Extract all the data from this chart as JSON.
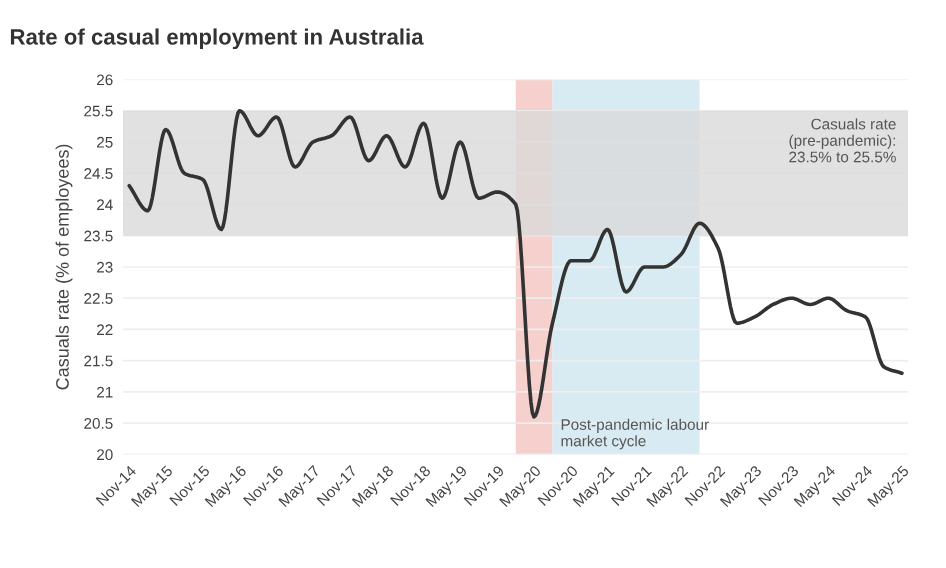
{
  "chart_data": {
    "type": "line",
    "title": "Rate of casual employment in Australia",
    "ylabel": "Casuals rate (% of employees)",
    "x": [
      "2014-11",
      "2015-02",
      "2015-05",
      "2015-08",
      "2015-11",
      "2016-02",
      "2016-05",
      "2016-08",
      "2016-11",
      "2017-02",
      "2017-05",
      "2017-08",
      "2017-11",
      "2018-02",
      "2018-05",
      "2018-08",
      "2018-11",
      "2019-02",
      "2019-05",
      "2019-08",
      "2019-11",
      "2020-02",
      "2020-05",
      "2020-08",
      "2020-11",
      "2021-02",
      "2021-05",
      "2021-08",
      "2021-11",
      "2022-02",
      "2022-05",
      "2022-08",
      "2022-11",
      "2023-02",
      "2023-05",
      "2023-08",
      "2023-11",
      "2024-02",
      "2024-05",
      "2024-08",
      "2024-11",
      "2025-02",
      "2025-05"
    ],
    "series": [
      {
        "color": "#333333",
        "values": [
          24.3,
          23.9,
          25.2,
          24.5,
          24.4,
          23.6,
          25.5,
          25.1,
          25.4,
          24.6,
          25.0,
          25.1,
          25.4,
          24.7,
          25.1,
          24.6,
          25.3,
          24.1,
          25.0,
          24.1,
          24.2,
          24.0,
          20.6,
          22.1,
          23.1,
          23.1,
          23.6,
          22.6,
          23.0,
          23.0,
          23.2,
          23.7,
          23.3,
          22.1,
          22.2,
          22.4,
          22.5,
          22.4,
          22.5,
          22.3,
          22.2,
          21.4,
          21.3
        ]
      }
    ],
    "ylim": [
      20,
      26
    ],
    "yticks": [
      20,
      20.5,
      21,
      21.5,
      22,
      22.5,
      23,
      23.5,
      24,
      24.5,
      25,
      25.5,
      26
    ],
    "xlim": [
      "2014-10",
      "2025-06"
    ],
    "xticks": [
      {
        "value": "2014-11",
        "label": "Nov-14"
      },
      {
        "value": "2015-05",
        "label": "May-15"
      },
      {
        "value": "2015-11",
        "label": "Nov-15"
      },
      {
        "value": "2016-05",
        "label": "May-16"
      },
      {
        "value": "2016-11",
        "label": "Nov-16"
      },
      {
        "value": "2017-05",
        "label": "May-17"
      },
      {
        "value": "2017-11",
        "label": "Nov-17"
      },
      {
        "value": "2018-05",
        "label": "May-18"
      },
      {
        "value": "2018-11",
        "label": "Nov-18"
      },
      {
        "value": "2019-05",
        "label": "May-19"
      },
      {
        "value": "2019-11",
        "label": "Nov-19"
      },
      {
        "value": "2020-05",
        "label": "May-20"
      },
      {
        "value": "2020-11",
        "label": "Nov-20"
      },
      {
        "value": "2021-05",
        "label": "May-21"
      },
      {
        "value": "2021-11",
        "label": "Nov-21"
      },
      {
        "value": "2022-05",
        "label": "May-22"
      },
      {
        "value": "2022-11",
        "label": "Nov-22"
      },
      {
        "value": "2023-05",
        "label": "May-23"
      },
      {
        "value": "2023-11",
        "label": "Nov-23"
      },
      {
        "value": "2024-05",
        "label": "May-24"
      },
      {
        "value": "2024-11",
        "label": "Nov-24"
      },
      {
        "value": "2025-05",
        "label": "May-25"
      }
    ],
    "bands": [
      {
        "axis": "y",
        "from": 23.5,
        "to": 25.5,
        "label": "Casuals rate\n(pre-pandemic):\n23.5% to 25.5%",
        "color": "#d9d9d9"
      },
      {
        "axis": "x",
        "from": "2020-02",
        "to": "2020-08",
        "color": "#f2c4c0"
      },
      {
        "axis": "x",
        "from": "2020-08",
        "to": "2022-08",
        "label": "Post-pandemic labour\nmarket cycle",
        "color": "#cfe6ef"
      }
    ],
    "grid": "y",
    "marker": "none",
    "line_style": "solid",
    "legend": false
  }
}
